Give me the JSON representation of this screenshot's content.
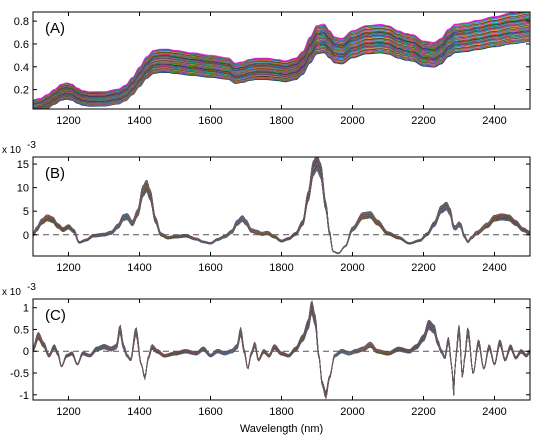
{
  "chart_data": [
    {
      "type": "line",
      "panel_label": "(A)",
      "x_range": [
        1100,
        2500
      ],
      "xticks": [
        1200,
        1400,
        1600,
        1800,
        2000,
        2200,
        2400
      ],
      "ylim": [
        0.03,
        0.88
      ],
      "yticks": [
        0.2,
        0.4,
        0.6,
        0.8
      ],
      "ytick_labels": [
        "0.2",
        "0.4",
        "0.6",
        "0.8"
      ],
      "exponent_label": "",
      "zero_line": false,
      "spectrum_count": 40,
      "mean_spectrum": {
        "x": [
          1100,
          1120,
          1140,
          1160,
          1180,
          1195,
          1210,
          1225,
          1240,
          1260,
          1300,
          1340,
          1360,
          1380,
          1400,
          1420,
          1440,
          1460,
          1480,
          1500,
          1550,
          1600,
          1650,
          1670,
          1690,
          1710,
          1730,
          1760,
          1790,
          1810,
          1840,
          1860,
          1880,
          1900,
          1920,
          1935,
          1950,
          1970,
          2000,
          2040,
          2080,
          2100,
          2130,
          2150,
          2170,
          2200,
          2230,
          2250,
          2270,
          2290,
          2320,
          2350,
          2400,
          2450,
          2500
        ],
        "y": [
          0.05,
          0.06,
          0.09,
          0.13,
          0.17,
          0.18,
          0.17,
          0.14,
          0.12,
          0.11,
          0.11,
          0.13,
          0.16,
          0.22,
          0.3,
          0.38,
          0.43,
          0.44,
          0.44,
          0.43,
          0.41,
          0.39,
          0.37,
          0.33,
          0.34,
          0.36,
          0.37,
          0.37,
          0.36,
          0.35,
          0.37,
          0.42,
          0.53,
          0.62,
          0.63,
          0.58,
          0.53,
          0.52,
          0.58,
          0.62,
          0.63,
          0.62,
          0.58,
          0.56,
          0.55,
          0.5,
          0.49,
          0.52,
          0.59,
          0.63,
          0.64,
          0.66,
          0.69,
          0.72,
          0.74
        ]
      },
      "spread": {
        "offset": [
          -0.045,
          0.055
        ],
        "scale": [
          0.9,
          1.14
        ]
      }
    },
    {
      "type": "line",
      "panel_label": "(B)",
      "x_range": [
        1100,
        2500
      ],
      "xticks": [
        1200,
        1400,
        1600,
        1800,
        2000,
        2200,
        2400
      ],
      "ylim": [
        -4.5,
        16.5
      ],
      "yticks": [
        0,
        5,
        10,
        15
      ],
      "ytick_labels": [
        "0",
        "5",
        "10",
        "15"
      ],
      "exponent_label": "x 10",
      "exponent_power": "-3",
      "zero_line": true,
      "spectrum_count": 40,
      "mean_spectrum": {
        "x": [
          1100,
          1110,
          1125,
          1140,
          1155,
          1170,
          1185,
          1200,
          1215,
          1230,
          1250,
          1270,
          1300,
          1320,
          1340,
          1355,
          1365,
          1380,
          1395,
          1410,
          1420,
          1430,
          1445,
          1460,
          1480,
          1500,
          1530,
          1560,
          1580,
          1600,
          1620,
          1640,
          1660,
          1675,
          1690,
          1700,
          1715,
          1730,
          1745,
          1760,
          1780,
          1800,
          1820,
          1840,
          1860,
          1875,
          1890,
          1900,
          1910,
          1925,
          1935,
          1945,
          1960,
          1980,
          2000,
          2030,
          2050,
          2070,
          2100,
          2130,
          2160,
          2190,
          2210,
          2230,
          2250,
          2265,
          2275,
          2285,
          2290,
          2300,
          2305,
          2315,
          2325,
          2335,
          2350,
          2380,
          2400,
          2420,
          2440,
          2460,
          2480,
          2500
        ],
        "y": [
          0,
          1.2,
          2.8,
          3.6,
          3.2,
          1.9,
          1.1,
          1.7,
          0.8,
          -1.6,
          -1.1,
          -0.2,
          0,
          0.4,
          1.8,
          3.6,
          3.8,
          2.4,
          4.6,
          9.2,
          10.3,
          8.4,
          3.1,
          0.1,
          -0.6,
          -0.4,
          -0.2,
          -0.9,
          -1.5,
          -1.8,
          -1.0,
          -0.4,
          0.6,
          2.5,
          3.4,
          2.6,
          0.9,
          0.6,
          0.2,
          0.4,
          -0.4,
          -1.3,
          -0.8,
          0.2,
          2.5,
          8.0,
          14.0,
          15.2,
          13.5,
          6.0,
          0.5,
          -3.5,
          -3.9,
          -2.4,
          1.2,
          4.0,
          4.2,
          2.6,
          0.3,
          -0.6,
          -1.8,
          -1.2,
          0.1,
          2.2,
          5.3,
          6.0,
          4.8,
          1.6,
          1.4,
          2.2,
          1.9,
          -0.3,
          -1.5,
          -0.6,
          0.4,
          2.0,
          3.5,
          3.8,
          3.6,
          2.5,
          1.1,
          0.4
        ]
      },
      "spread": {
        "offset": [
          -0.3,
          0.3
        ],
        "scale": [
          0.92,
          1.1
        ]
      }
    },
    {
      "type": "line",
      "panel_label": "(C)",
      "x_range": [
        1100,
        2500
      ],
      "xticks": [
        1200,
        1400,
        1600,
        1800,
        2000,
        2200,
        2400
      ],
      "ylim": [
        -1.12,
        1.2
      ],
      "yticks": [
        -1,
        -0.5,
        0,
        0.5,
        1
      ],
      "ytick_labels": [
        "-1",
        "-0.5",
        "0",
        "0.5",
        "1"
      ],
      "exponent_label": "x 10",
      "exponent_power": "-3",
      "zero_line": true,
      "xlabel": "Wavelength (nm)",
      "spectrum_count": 40,
      "mean_spectrum": {
        "x": [
          1100,
          1115,
          1130,
          1145,
          1160,
          1170,
          1180,
          1195,
          1210,
          1225,
          1240,
          1260,
          1280,
          1300,
          1320,
          1335,
          1345,
          1355,
          1365,
          1375,
          1390,
          1405,
          1415,
          1425,
          1435,
          1450,
          1470,
          1500,
          1530,
          1560,
          1580,
          1600,
          1620,
          1640,
          1660,
          1675,
          1685,
          1695,
          1705,
          1715,
          1725,
          1735,
          1750,
          1765,
          1780,
          1800,
          1820,
          1840,
          1860,
          1875,
          1885,
          1895,
          1905,
          1915,
          1925,
          1935,
          1950,
          1970,
          1990,
          2010,
          2030,
          2050,
          2070,
          2100,
          2130,
          2160,
          2180,
          2200,
          2215,
          2230,
          2240,
          2250,
          2260,
          2270,
          2280,
          2285,
          2290,
          2300,
          2310,
          2315,
          2325,
          2340,
          2355,
          2370,
          2385,
          2400,
          2415,
          2430,
          2445,
          2460,
          2475,
          2490,
          2500
        ],
        "y": [
          0.05,
          0.35,
          0.15,
          -0.1,
          0.1,
          -0.05,
          -0.35,
          -0.1,
          -0.05,
          -0.3,
          -0.05,
          -0.1,
          0.05,
          0.1,
          0.05,
          0.1,
          0.5,
          0.1,
          -0.1,
          -0.2,
          0.45,
          -0.3,
          -0.6,
          -0.15,
          0.1,
          0.0,
          -0.1,
          -0.05,
          0.0,
          -0.05,
          0.05,
          -0.1,
          0.0,
          -0.05,
          0.0,
          0.1,
          0.45,
          0.0,
          -0.4,
          -0.05,
          0.15,
          -0.2,
          0.0,
          -0.1,
          0.1,
          -0.05,
          -0.1,
          0.05,
          0.3,
          0.6,
          1.0,
          0.7,
          -0.1,
          -0.75,
          -1.0,
          -0.6,
          -0.1,
          0.0,
          -0.05,
          0.0,
          0.05,
          0.15,
          0.0,
          -0.05,
          0.05,
          0.0,
          0.1,
          0.3,
          0.6,
          0.5,
          0.2,
          0.0,
          -0.15,
          0.25,
          -0.35,
          -0.95,
          -0.2,
          0.5,
          -0.6,
          -0.2,
          0.45,
          -0.5,
          0.2,
          -0.4,
          0.1,
          -0.3,
          0.2,
          -0.2,
          0.1,
          -0.15,
          0.0,
          -0.1,
          0.0
        ]
      },
      "spread": {
        "offset": [
          -0.04,
          0.04
        ],
        "scale": [
          0.9,
          1.12
        ]
      }
    }
  ]
}
